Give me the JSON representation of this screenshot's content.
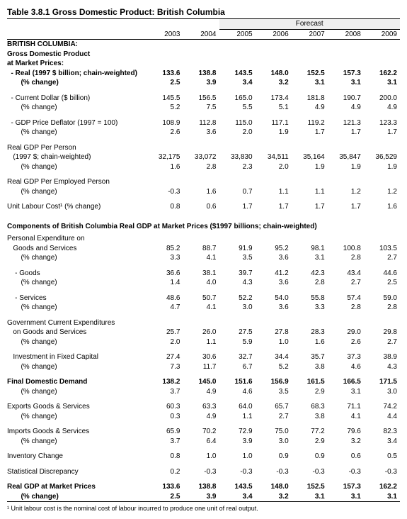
{
  "title": "Table 3.8.1    Gross Domestic Product:  British Columbia",
  "years": [
    "2003",
    "2004",
    "2005",
    "2006",
    "2007",
    "2008",
    "2009"
  ],
  "forecast_label": "Forecast",
  "section1_head": "BRITISH COLUMBIA:",
  "section1_sub1": "Gross Domestic Product",
  "section1_sub2": "  at Market Prices:",
  "rows1": [
    {
      "label": "  - Real (1997 $ billion; chain-weighted)",
      "bold": true,
      "v": [
        "133.6",
        "138.8",
        "143.5",
        "148.0",
        "152.5",
        "157.3",
        "162.2"
      ]
    },
    {
      "label": "       (% change)",
      "bold": true,
      "v": [
        "2.5",
        "3.9",
        "3.4",
        "3.2",
        "3.1",
        "3.1",
        "3.1"
      ]
    },
    {
      "spacer": true
    },
    {
      "label": "  - Current Dollar ($ billion)",
      "v": [
        "145.5",
        "156.5",
        "165.0",
        "173.4",
        "181.8",
        "190.7",
        "200.0"
      ]
    },
    {
      "label": "       (% change)",
      "v": [
        "5.2",
        "7.5",
        "5.5",
        "5.1",
        "4.9",
        "4.9",
        "4.9"
      ]
    },
    {
      "spacer": true
    },
    {
      "label": "  - GDP Price Deflator (1997 = 100)",
      "v": [
        "108.9",
        "112.8",
        "115.0",
        "117.1",
        "119.2",
        "121.3",
        "123.3"
      ]
    },
    {
      "label": "       (% change)",
      "v": [
        "2.6",
        "3.6",
        "2.0",
        "1.9",
        "1.7",
        "1.7",
        "1.7"
      ]
    },
    {
      "spacer": true
    },
    {
      "label": "Real GDP Per Person",
      "v": [
        "",
        "",
        "",
        "",
        "",
        "",
        ""
      ]
    },
    {
      "label": "   (1997 $; chain-weighted)",
      "v": [
        "32,175",
        "33,072",
        "33,830",
        "34,511",
        "35,164",
        "35,847",
        "36,529"
      ]
    },
    {
      "label": "       (% change)",
      "v": [
        "1.6",
        "2.8",
        "2.3",
        "2.0",
        "1.9",
        "1.9",
        "1.9"
      ]
    },
    {
      "spacer": true
    },
    {
      "label": "Real GDP Per Employed Person",
      "v": [
        "",
        "",
        "",
        "",
        "",
        "",
        ""
      ]
    },
    {
      "label": "       (% change)",
      "v": [
        "-0.3",
        "1.6",
        "0.7",
        "1.1",
        "1.1",
        "1.2",
        "1.2"
      ]
    },
    {
      "spacer": true
    },
    {
      "label": "Unit Labour Cost¹ (% change)",
      "v": [
        "0.8",
        "0.6",
        "1.7",
        "1.7",
        "1.7",
        "1.7",
        "1.6"
      ]
    }
  ],
  "section2_head": "Components of British Columbia Real GDP at Market Prices ($1997 billions; chain-weighted)",
  "rows2": [
    {
      "label": "Personal Expenditure on",
      "v": [
        "",
        "",
        "",
        "",
        "",
        "",
        ""
      ]
    },
    {
      "label": "   Goods and Services",
      "v": [
        "85.2",
        "88.7",
        "91.9",
        "95.2",
        "98.1",
        "100.8",
        "103.5"
      ]
    },
    {
      "label": "       (% change)",
      "v": [
        "3.3",
        "4.1",
        "3.5",
        "3.6",
        "3.1",
        "2.8",
        "2.7"
      ]
    },
    {
      "spacer": true
    },
    {
      "label": "    - Goods",
      "v": [
        "36.6",
        "38.1",
        "39.7",
        "41.2",
        "42.3",
        "43.4",
        "44.6"
      ]
    },
    {
      "label": "       (% change)",
      "v": [
        "1.4",
        "4.0",
        "4.3",
        "3.6",
        "2.8",
        "2.7",
        "2.5"
      ]
    },
    {
      "spacer": true
    },
    {
      "label": "    - Services",
      "v": [
        "48.6",
        "50.7",
        "52.2",
        "54.0",
        "55.8",
        "57.4",
        "59.0"
      ]
    },
    {
      "label": "       (% change)",
      "v": [
        "4.7",
        "4.1",
        "3.0",
        "3.6",
        "3.3",
        "2.8",
        "2.8"
      ]
    },
    {
      "spacer": true
    },
    {
      "label": "Government Current Expenditures",
      "v": [
        "",
        "",
        "",
        "",
        "",
        "",
        ""
      ]
    },
    {
      "label": "   on Goods and Services",
      "v": [
        "25.7",
        "26.0",
        "27.5",
        "27.8",
        "28.3",
        "29.0",
        "29.8"
      ]
    },
    {
      "label": "       (% change)",
      "v": [
        "2.0",
        "1.1",
        "5.9",
        "1.0",
        "1.6",
        "2.6",
        "2.7"
      ]
    },
    {
      "spacer": true
    },
    {
      "label": "   Investment in Fixed Capital",
      "v": [
        "27.4",
        "30.6",
        "32.7",
        "34.4",
        "35.7",
        "37.3",
        "38.9"
      ]
    },
    {
      "label": "       (% change)",
      "v": [
        "7.3",
        "11.7",
        "6.7",
        "5.2",
        "3.8",
        "4.6",
        "4.3"
      ]
    },
    {
      "spacer": true
    },
    {
      "label": "Final Domestic Demand",
      "bold": true,
      "v": [
        "138.2",
        "145.0",
        "151.6",
        "156.9",
        "161.5",
        "166.5",
        "171.5"
      ]
    },
    {
      "label": "       (% change)",
      "v": [
        "3.7",
        "4.9",
        "4.6",
        "3.5",
        "2.9",
        "3.1",
        "3.0"
      ]
    },
    {
      "spacer": true
    },
    {
      "label": "Exports Goods & Services",
      "v": [
        "60.3",
        "63.3",
        "64.0",
        "65.7",
        "68.3",
        "71.1",
        "74.2"
      ]
    },
    {
      "label": "       (% change)",
      "v": [
        "0.3",
        "4.9",
        "1.1",
        "2.7",
        "3.8",
        "4.1",
        "4.4"
      ]
    },
    {
      "spacer": true
    },
    {
      "label": "Imports Goods & Services",
      "v": [
        "65.9",
        "70.2",
        "72.9",
        "75.0",
        "77.2",
        "79.6",
        "82.3"
      ]
    },
    {
      "label": "       (% change)",
      "v": [
        "3.7",
        "6.4",
        "3.9",
        "3.0",
        "2.9",
        "3.2",
        "3.4"
      ]
    },
    {
      "spacer": true
    },
    {
      "label": "Inventory Change",
      "v": [
        "0.8",
        "1.0",
        "1.0",
        "0.9",
        "0.9",
        "0.6",
        "0.5"
      ]
    },
    {
      "spacer": true
    },
    {
      "label": "Statistical Discrepancy",
      "v": [
        "0.2",
        "-0.3",
        "-0.3",
        "-0.3",
        "-0.3",
        "-0.3",
        "-0.3"
      ]
    },
    {
      "spacer": true
    },
    {
      "label": "Real GDP at Market Prices",
      "bold": true,
      "v": [
        "133.6",
        "138.8",
        "143.5",
        "148.0",
        "152.5",
        "157.3",
        "162.2"
      ]
    },
    {
      "label": "       (% change)",
      "bold": true,
      "v": [
        "2.5",
        "3.9",
        "3.4",
        "3.2",
        "3.1",
        "3.1",
        "3.1"
      ]
    }
  ],
  "footnote": "¹ Unit labour cost is the nominal cost of labour incurred to produce one unit of real output."
}
